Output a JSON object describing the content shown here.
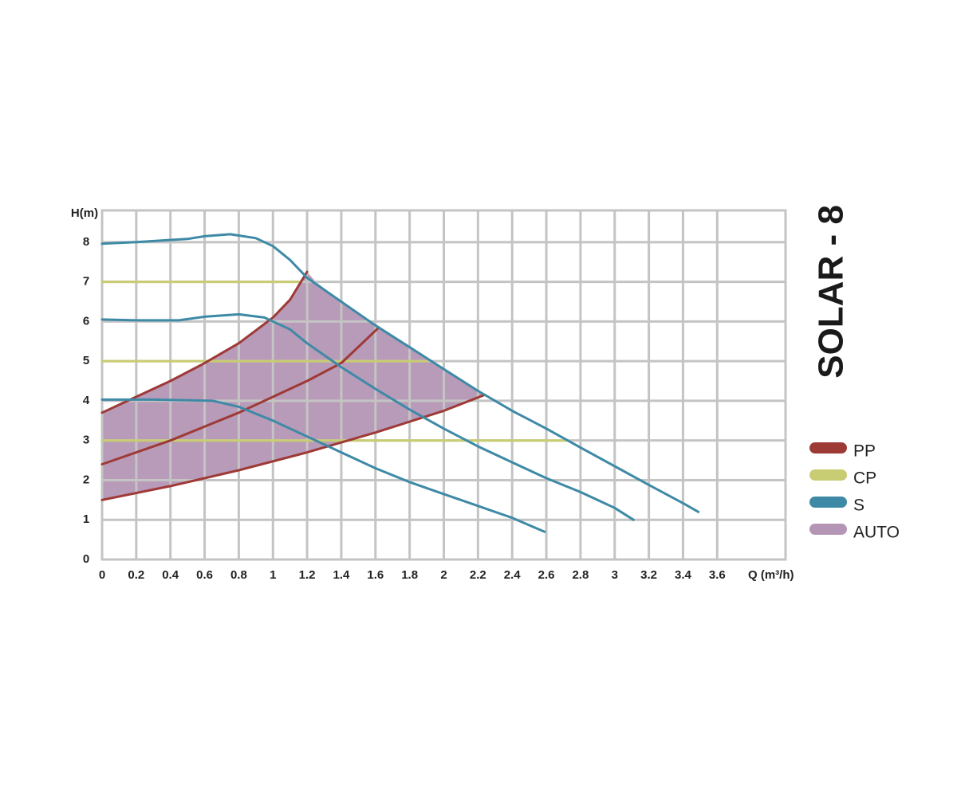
{
  "chart_data": {
    "type": "line",
    "title": "SOLAR - 8",
    "x_label": "Q (m³/h)",
    "y_label": "H(m)",
    "xlim": [
      0,
      4.0
    ],
    "ylim": [
      0,
      8.8
    ],
    "xticks": [
      0,
      0.2,
      0.4,
      0.6,
      0.8,
      1,
      1.2,
      1.4,
      1.6,
      1.8,
      2,
      2.2,
      2.4,
      2.6,
      2.8,
      3,
      3.2,
      3.4,
      3.6
    ],
    "yticks": [
      0,
      1,
      2,
      3,
      4,
      5,
      6,
      7,
      8
    ],
    "grid": true,
    "legend": "right",
    "series": [
      {
        "name": "PP",
        "color": "#9e3a36",
        "lines": [
          {
            "x": [
              0,
              0.2,
              0.4,
              0.6,
              0.8,
              1.0,
              1.1,
              1.2
            ],
            "values": [
              3.7,
              4.1,
              4.5,
              4.95,
              5.45,
              6.1,
              6.55,
              7.25
            ]
          },
          {
            "x": [
              0,
              0.4,
              0.8,
              1.2,
              1.4,
              1.62
            ],
            "values": [
              2.4,
              3.0,
              3.7,
              4.5,
              4.95,
              5.85
            ]
          },
          {
            "x": [
              0,
              0.4,
              0.8,
              1.2,
              1.6,
              2.0,
              2.24
            ],
            "values": [
              1.5,
              1.85,
              2.25,
              2.7,
              3.2,
              3.75,
              4.15
            ]
          }
        ]
      },
      {
        "name": "CP",
        "color": "#c8cc72",
        "lines": [
          {
            "x": [
              0,
              1.15
            ],
            "values": [
              7,
              7
            ]
          },
          {
            "x": [
              0,
              1.9
            ],
            "values": [
              5,
              5
            ]
          },
          {
            "x": [
              0,
              2.72
            ],
            "values": [
              3,
              3
            ]
          }
        ]
      },
      {
        "name": "S",
        "color": "#3e8aa6",
        "lines": [
          {
            "x": [
              0,
              0.2,
              0.5,
              0.6,
              0.75,
              0.9,
              1.0,
              1.1,
              1.2,
              1.4,
              1.6,
              1.8,
              2.0,
              2.2,
              2.4,
              2.6,
              2.8,
              3.0,
              3.2,
              3.4,
              3.49
            ],
            "values": [
              7.96,
              8.0,
              8.08,
              8.15,
              8.2,
              8.1,
              7.9,
              7.55,
              7.1,
              6.5,
              5.9,
              5.35,
              4.8,
              4.25,
              3.75,
              3.3,
              2.82,
              2.35,
              1.88,
              1.42,
              1.2
            ]
          },
          {
            "x": [
              0,
              0.2,
              0.45,
              0.6,
              0.8,
              0.95,
              1.1,
              1.2,
              1.4,
              1.6,
              1.8,
              2.0,
              2.2,
              2.4,
              2.6,
              2.8,
              3.0,
              3.11
            ],
            "values": [
              6.05,
              6.03,
              6.03,
              6.12,
              6.18,
              6.1,
              5.8,
              5.45,
              4.85,
              4.3,
              3.78,
              3.3,
              2.85,
              2.45,
              2.05,
              1.7,
              1.3,
              1.0
            ]
          },
          {
            "x": [
              0,
              0.3,
              0.65,
              0.8,
              1.0,
              1.2,
              1.4,
              1.6,
              1.8,
              2.0,
              2.2,
              2.4,
              2.59
            ],
            "values": [
              4.03,
              4.03,
              4.0,
              3.85,
              3.5,
              3.1,
              2.7,
              2.3,
              1.95,
              1.65,
              1.35,
              1.05,
              0.7
            ]
          }
        ]
      },
      {
        "name": "AUTO",
        "color": "#b495b5",
        "area": {
          "x": [
            0,
            0.4,
            0.8,
            1.2,
            1.6,
            2.0,
            2.24,
            2.2,
            2.0,
            1.8,
            1.6,
            1.4,
            1.25,
            1.2,
            1.1,
            1.0,
            0.8,
            0.6,
            0.4,
            0.2,
            0
          ],
          "values": [
            1.5,
            1.85,
            2.25,
            2.7,
            3.2,
            3.75,
            4.15,
            4.25,
            4.8,
            5.35,
            5.9,
            6.5,
            7.0,
            7.25,
            6.55,
            6.1,
            5.45,
            4.95,
            4.5,
            4.1,
            3.7
          ]
        }
      }
    ]
  }
}
